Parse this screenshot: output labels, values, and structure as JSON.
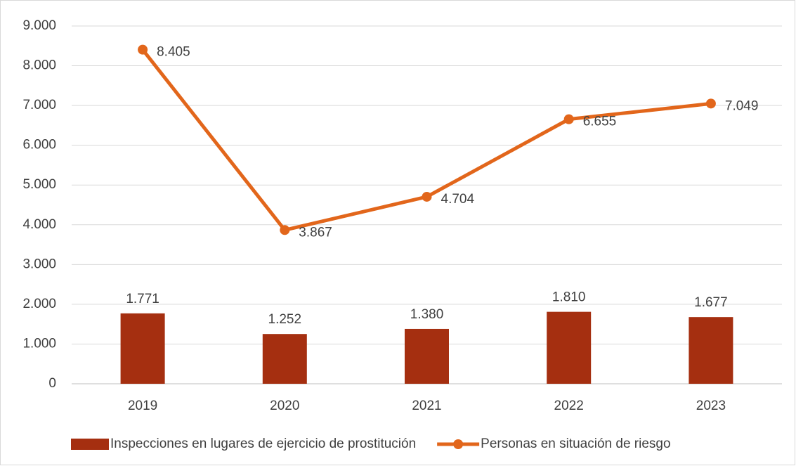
{
  "chart_data": {
    "type": "combo",
    "categories": [
      "2019",
      "2020",
      "2021",
      "2022",
      "2023"
    ],
    "ylim": [
      0,
      9000
    ],
    "yticks": [
      0,
      {
        "value": 1000,
        "label": "1.000"
      },
      {
        "value": 2000,
        "label": "2.000"
      },
      {
        "value": 3000,
        "label": "3.000"
      },
      {
        "value": 4000,
        "label": "4.000"
      },
      {
        "value": 5000,
        "label": "5.000"
      },
      {
        "value": 6000,
        "label": "6.000"
      },
      {
        "value": 7000,
        "label": "7.000"
      },
      {
        "value": 8000,
        "label": "8.000"
      },
      {
        "value": 9000,
        "label": "9.000"
      }
    ],
    "grid": true,
    "legend": "bottom",
    "series": [
      {
        "name": "Inspecciones en lugares de ejercicio de prostitución",
        "type": "bar",
        "color": "#a52f10",
        "values": [
          1771,
          1252,
          1380,
          1810,
          1677
        ],
        "value_labels": [
          "1.771",
          "1.252",
          "1.380",
          "1.810",
          "1.677"
        ]
      },
      {
        "name": "Personas en situación de riesgo",
        "type": "line",
        "color": "#e2661b",
        "values": [
          8405,
          3867,
          4704,
          6655,
          7049
        ],
        "value_labels": [
          "8.405",
          "3.867",
          "4.704",
          "6.655",
          "7.049"
        ]
      }
    ]
  }
}
